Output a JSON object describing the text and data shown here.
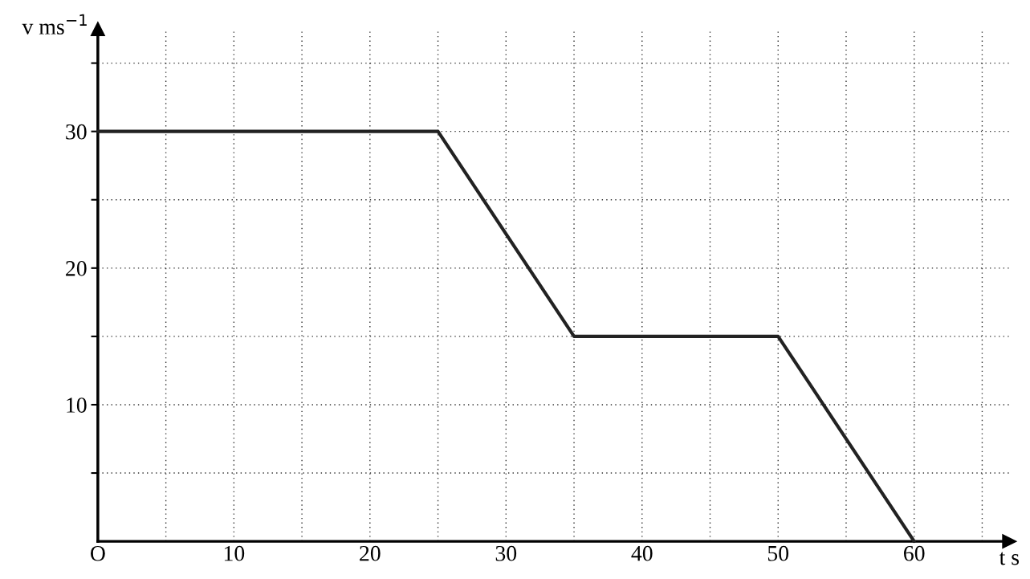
{
  "chart_data": {
    "type": "line",
    "xlabel": "t s",
    "ylabel": "v ms$^{−1}$",
    "x": [
      0,
      25,
      35,
      50,
      60
    ],
    "series": [
      {
        "color": "#222222",
        "values": [
          30,
          30,
          15,
          15,
          0
        ]
      }
    ],
    "xlim": [
      0,
      67
    ],
    "ylim": [
      0,
      37.5
    ],
    "xticks": [
      {
        "value": 0,
        "label": "O"
      },
      {
        "value": 5,
        "label": null
      },
      10,
      {
        "value": 15,
        "label": null
      },
      20,
      {
        "value": 25,
        "label": null
      },
      30,
      {
        "value": 35,
        "label": null
      },
      40,
      {
        "value": 45,
        "label": null
      },
      50,
      {
        "value": 55,
        "label": null
      },
      60,
      {
        "value": 65,
        "label": null
      }
    ],
    "yticks": [
      {
        "value": 5,
        "label": null
      },
      10,
      {
        "value": 15,
        "label": null
      },
      20,
      {
        "value": 25,
        "label": null
      },
      30,
      {
        "value": 35,
        "label": null
      }
    ],
    "grid": true,
    "line_style": "solid",
    "marker": "none"
  }
}
